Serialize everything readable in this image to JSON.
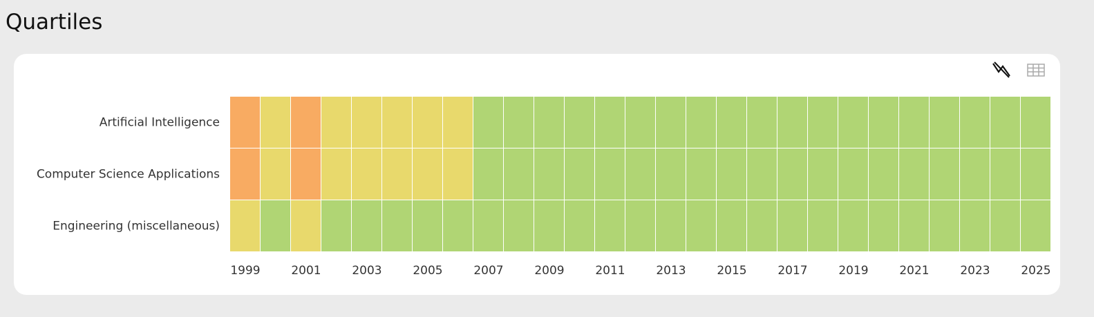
{
  "chart_data": {
    "type": "heatmap",
    "title": "Quartiles",
    "rows": [
      "Artificial Intelligence",
      "Computer Science Applications",
      "Engineering (miscellaneous)"
    ],
    "categories": [
      "1999",
      null,
      "2001",
      null,
      "2003",
      null,
      "2005",
      null,
      "2007",
      null,
      "2009",
      null,
      "2011",
      null,
      "2013",
      null,
      "2015",
      null,
      "2017",
      null,
      "2019",
      null,
      "2021",
      null,
      "2023",
      null,
      "2025"
    ],
    "values": [
      [
        3,
        2,
        3,
        2,
        2,
        2,
        2,
        2,
        1,
        1,
        1,
        1,
        1,
        1,
        1,
        1,
        1,
        1,
        1,
        1,
        1,
        1,
        1,
        1,
        1,
        1,
        1
      ],
      [
        3,
        2,
        3,
        2,
        2,
        2,
        2,
        2,
        1,
        1,
        1,
        1,
        1,
        1,
        1,
        1,
        1,
        1,
        1,
        1,
        1,
        1,
        1,
        1,
        1,
        1,
        1
      ],
      [
        2,
        1,
        2,
        1,
        1,
        1,
        1,
        1,
        1,
        1,
        1,
        1,
        1,
        1,
        1,
        1,
        1,
        1,
        1,
        1,
        1,
        1,
        1,
        1,
        1,
        1,
        1
      ]
    ],
    "quartile_colors": [
      "#b0d574",
      "#e8d96c",
      "#f8ab62"
    ]
  }
}
